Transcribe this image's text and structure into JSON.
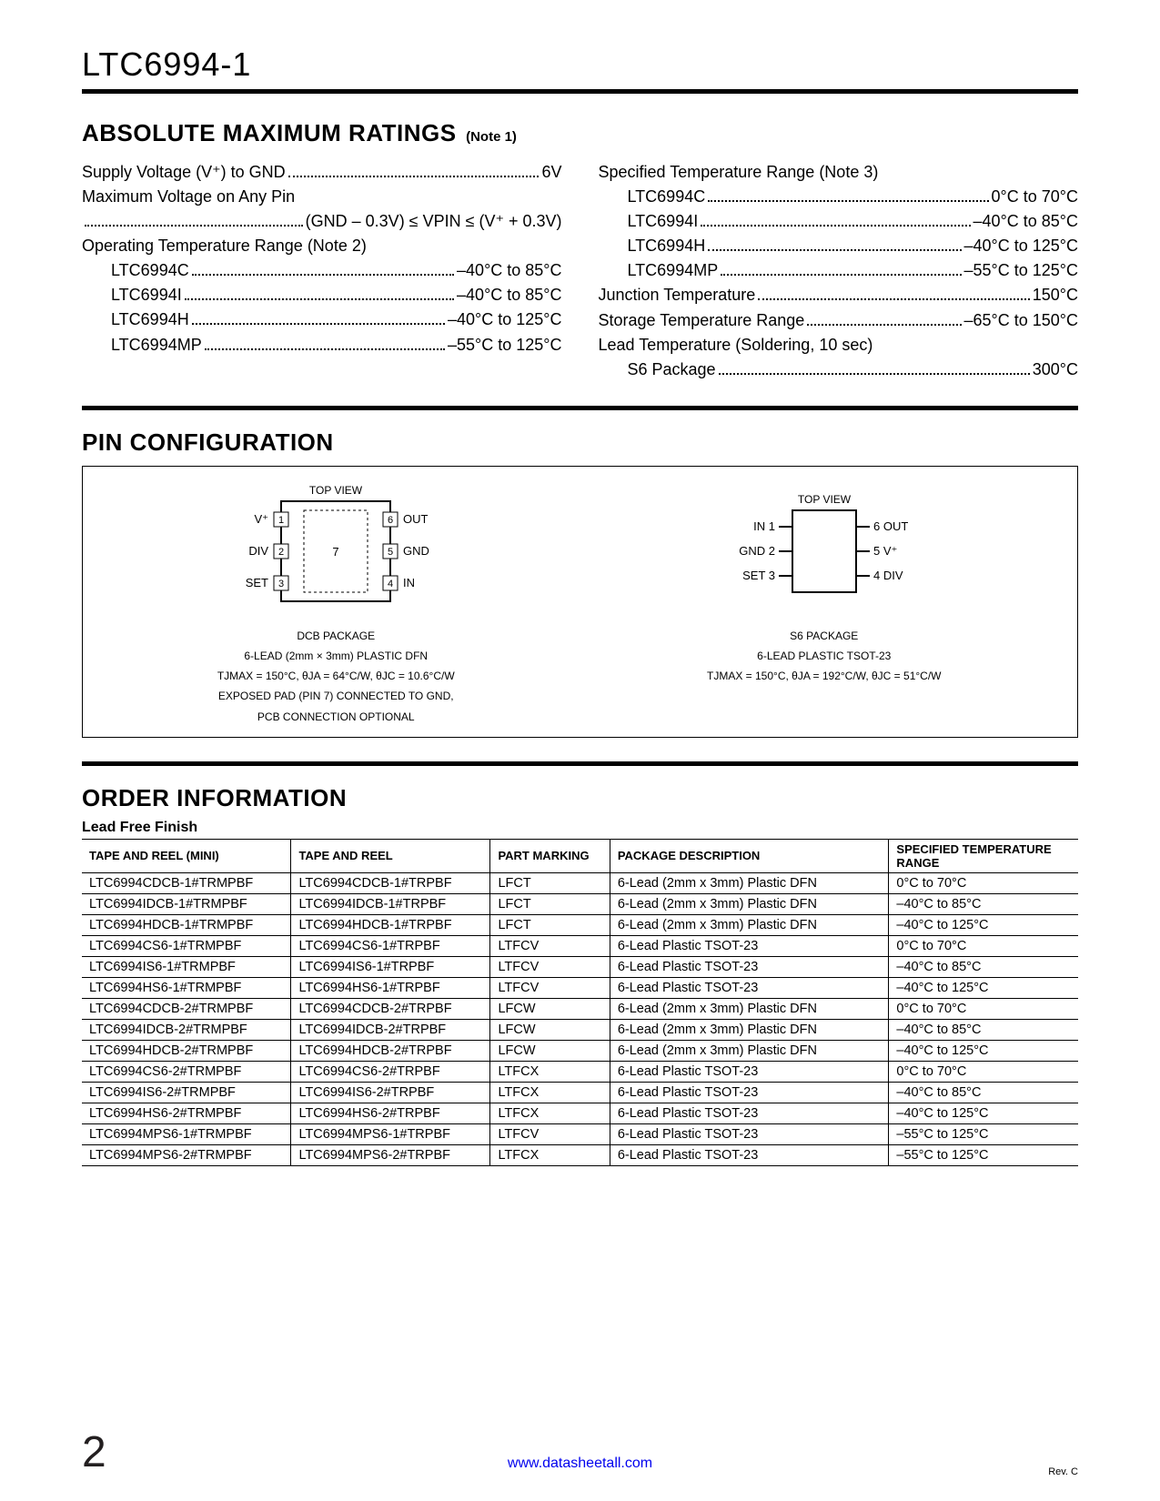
{
  "part_number": "LTC6994-1",
  "sections": {
    "ratings": {
      "title": "ABSOLUTE MAXIMUM RATINGS",
      "note_suffix": "(Note 1)",
      "left": [
        {
          "label": "Supply Voltage (V⁺) to GND",
          "value": "6V",
          "indent": false
        },
        {
          "label": "Maximum Voltage on Any Pin",
          "value": "",
          "indent": false,
          "no_value": true
        },
        {
          "label": "",
          "value": "(GND – 0.3V) ≤ VPIN ≤ (V⁺ + 0.3V)",
          "indent": false,
          "right_only": true
        },
        {
          "label": "Operating Temperature Range (Note 2)",
          "value": "",
          "indent": false,
          "no_value": true
        },
        {
          "label": "LTC6994C",
          "value": "–40°C to 85°C",
          "indent": true
        },
        {
          "label": "LTC6994I",
          "value": "–40°C to 85°C",
          "indent": true
        },
        {
          "label": "LTC6994H",
          "value": "–40°C to 125°C",
          "indent": true
        },
        {
          "label": "LTC6994MP",
          "value": "–55°C to 125°C",
          "indent": true
        }
      ],
      "right": [
        {
          "label": "Specified Temperature Range (Note 3)",
          "value": "",
          "indent": false,
          "no_value": true
        },
        {
          "label": "LTC6994C",
          "value": "0°C to 70°C",
          "indent": true
        },
        {
          "label": "LTC6994I",
          "value": "–40°C to 85°C",
          "indent": true
        },
        {
          "label": "LTC6994H",
          "value": "–40°C to 125°C",
          "indent": true
        },
        {
          "label": "LTC6994MP",
          "value": "–55°C to 125°C",
          "indent": true
        },
        {
          "label": "Junction Temperature",
          "value": "150°C",
          "indent": false
        },
        {
          "label": "Storage Temperature Range",
          "value": "–65°C to 150°C",
          "indent": false
        },
        {
          "label": "Lead Temperature (Soldering, 10 sec)",
          "value": "",
          "indent": false,
          "no_value": true
        },
        {
          "label": "S6 Package",
          "value": "300°C",
          "indent": true
        }
      ]
    },
    "pin_config": {
      "title": "PIN CONFIGURATION",
      "packages": [
        {
          "top_label": "TOP VIEW",
          "type": "dfn",
          "pins_left": [
            {
              "n": "1",
              "name": "V⁺"
            },
            {
              "n": "2",
              "name": "DIV"
            },
            {
              "n": "3",
              "name": "SET"
            }
          ],
          "pins_right": [
            {
              "n": "6",
              "name": "OUT"
            },
            {
              "n": "5",
              "name": "GND"
            },
            {
              "n": "4",
              "name": "IN"
            }
          ],
          "center_pad": "7",
          "name_line1": "DCB PACKAGE",
          "name_line2": "6-LEAD (2mm × 3mm) PLASTIC DFN",
          "thermal": "TJMAX = 150°C, θJA = 64°C/W, θJC = 10.6°C/W",
          "extra1": "EXPOSED PAD (PIN 7) CONNECTED TO GND,",
          "extra2": "PCB CONNECTION OPTIONAL"
        },
        {
          "top_label": "TOP VIEW",
          "type": "tsot",
          "pins_left": [
            {
              "n": "1",
              "name": "IN"
            },
            {
              "n": "2",
              "name": "GND"
            },
            {
              "n": "3",
              "name": "SET"
            }
          ],
          "pins_right": [
            {
              "n": "6",
              "name": "OUT"
            },
            {
              "n": "5",
              "name": "V⁺"
            },
            {
              "n": "4",
              "name": "DIV"
            }
          ],
          "name_line1": "S6 PACKAGE",
          "name_line2": "6-LEAD PLASTIC TSOT-23",
          "thermal": "TJMAX = 150°C, θJA = 192°C/W, θJC = 51°C/W"
        }
      ]
    },
    "order": {
      "title": "ORDER INFORMATION",
      "subtitle": "Lead Free Finish",
      "columns": [
        "TAPE AND REEL (MINI)",
        "TAPE AND REEL",
        "PART MARKING",
        "PACKAGE DESCRIPTION",
        "SPECIFIED TEMPERATURE RANGE"
      ],
      "col_widths": [
        "21%",
        "20%",
        "12%",
        "28%",
        "19%"
      ],
      "rows": [
        [
          "LTC6994CDCB-1#TRMPBF",
          "LTC6994CDCB-1#TRPBF",
          "LFCT",
          "6-Lead (2mm x 3mm) Plastic DFN",
          "0°C to 70°C"
        ],
        [
          "LTC6994IDCB-1#TRMPBF",
          "LTC6994IDCB-1#TRPBF",
          "LFCT",
          "6-Lead (2mm x 3mm) Plastic DFN",
          "–40°C to 85°C"
        ],
        [
          "LTC6994HDCB-1#TRMPBF",
          "LTC6994HDCB-1#TRPBF",
          "LFCT",
          "6-Lead (2mm x 3mm) Plastic DFN",
          "–40°C to 125°C"
        ],
        [
          "LTC6994CS6-1#TRMPBF",
          "LTC6994CS6-1#TRPBF",
          "LTFCV",
          "6-Lead Plastic TSOT-23",
          "0°C to 70°C"
        ],
        [
          "LTC6994IS6-1#TRMPBF",
          "LTC6994IS6-1#TRPBF",
          "LTFCV",
          "6-Lead Plastic TSOT-23",
          "–40°C to 85°C"
        ],
        [
          "LTC6994HS6-1#TRMPBF",
          "LTC6994HS6-1#TRPBF",
          "LTFCV",
          "6-Lead Plastic TSOT-23",
          "–40°C to 125°C"
        ],
        [
          "LTC6994CDCB-2#TRMPBF",
          "LTC6994CDCB-2#TRPBF",
          "LFCW",
          "6-Lead (2mm x 3mm) Plastic DFN",
          "0°C to 70°C"
        ],
        [
          "LTC6994IDCB-2#TRMPBF",
          "LTC6994IDCB-2#TRPBF",
          "LFCW",
          "6-Lead (2mm x 3mm) Plastic DFN",
          "–40°C to 85°C"
        ],
        [
          "LTC6994HDCB-2#TRMPBF",
          "LTC6994HDCB-2#TRPBF",
          "LFCW",
          "6-Lead (2mm x 3mm) Plastic DFN",
          "–40°C to 125°C"
        ],
        [
          "LTC6994CS6-2#TRMPBF",
          "LTC6994CS6-2#TRPBF",
          "LTFCX",
          "6-Lead Plastic TSOT-23",
          "0°C to 70°C"
        ],
        [
          "LTC6994IS6-2#TRMPBF",
          "LTC6994IS6-2#TRPBF",
          "LTFCX",
          "6-Lead Plastic TSOT-23",
          "–40°C to 85°C"
        ],
        [
          "LTC6994HS6-2#TRMPBF",
          "LTC6994HS6-2#TRPBF",
          "LTFCX",
          "6-Lead Plastic TSOT-23",
          "–40°C to 125°C"
        ],
        [
          "LTC6994MPS6-1#TRMPBF",
          "LTC6994MPS6-1#TRPBF",
          "LTFCV",
          "6-Lead Plastic TSOT-23",
          "–55°C to 125°C"
        ],
        [
          "LTC6994MPS6-2#TRMPBF",
          "LTC6994MPS6-2#TRPBF",
          "LTFCX",
          "6-Lead Plastic TSOT-23",
          "–55°C to 125°C"
        ]
      ]
    }
  },
  "footer": {
    "page_num": "2",
    "link": "www.datasheetall.com",
    "rev": "Rev. C"
  }
}
